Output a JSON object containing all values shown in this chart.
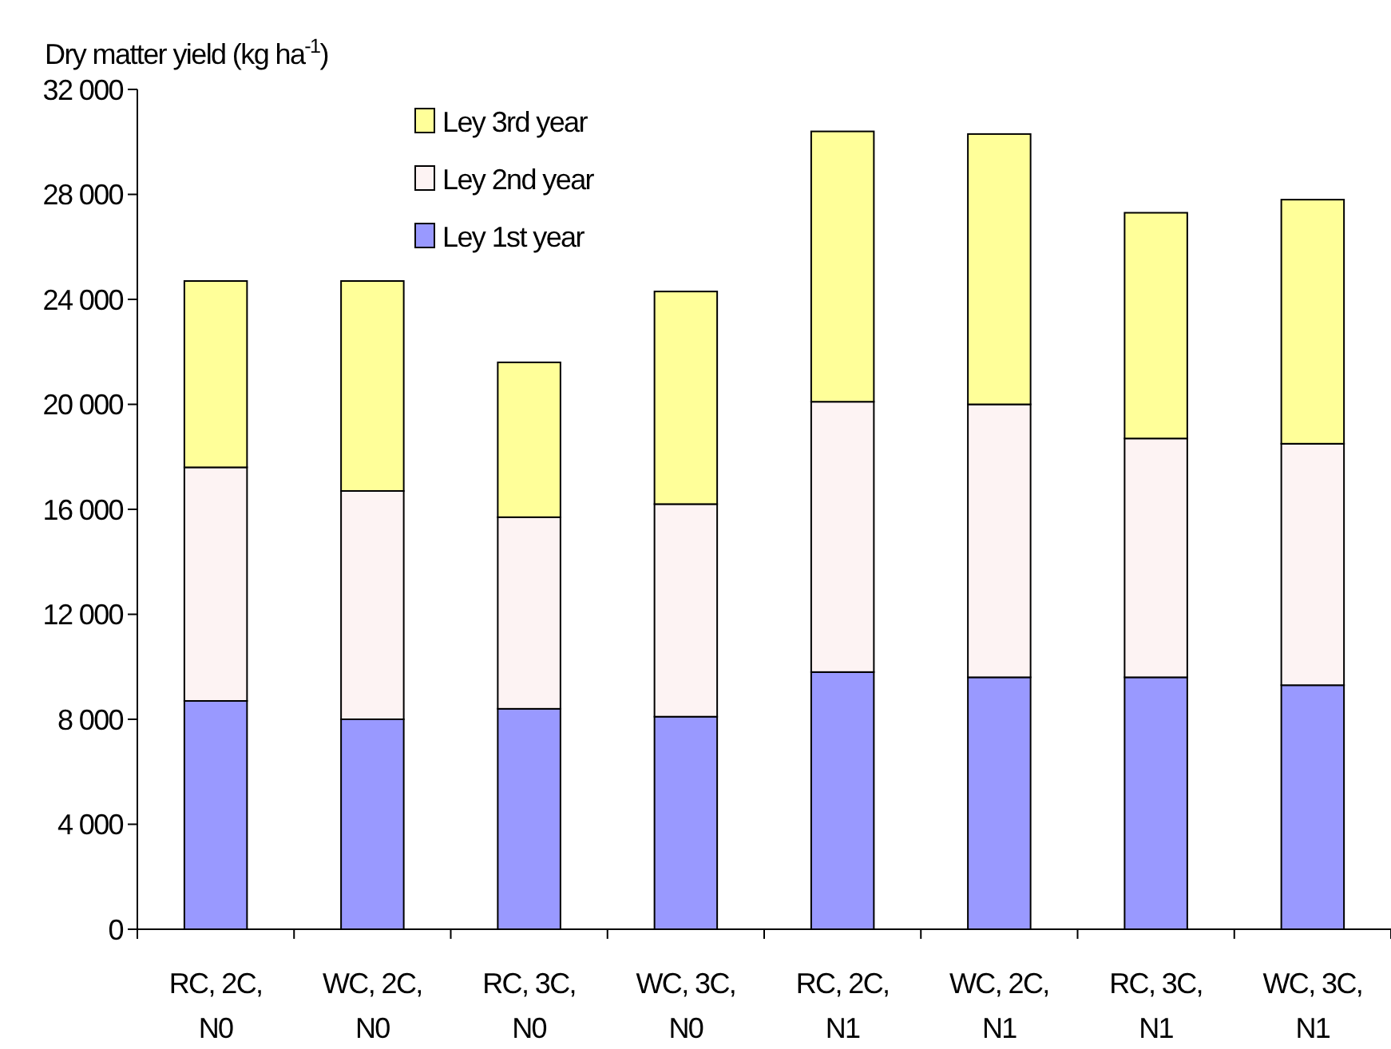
{
  "chart_data": {
    "type": "bar",
    "stacked": true,
    "ylabel": "Dry matter yield (kg ha$^{-1}$)",
    "categories": [
      "RC, 2C, N0",
      "WC, 2C, N0",
      "RC, 3C, N0",
      "WC, 3C, N0",
      "RC, 2C, N1",
      "WC, 2C, N1",
      "RC, 3C, N1",
      "WC, 3C, N1"
    ],
    "series": [
      {
        "name": "Ley 1st year",
        "color": "#9999ff",
        "values": [
          8700,
          8000,
          8400,
          8100,
          9800,
          9600,
          9600,
          9300
        ]
      },
      {
        "name": "Ley 2nd year",
        "color": "#fdf3f3",
        "values": [
          8900,
          8700,
          7300,
          8100,
          10300,
          10400,
          9100,
          9200
        ]
      },
      {
        "name": "Ley 3rd year",
        "color": "#ffff99",
        "values": [
          7100,
          8000,
          5900,
          8100,
          10300,
          10300,
          8600,
          9300
        ]
      }
    ],
    "ylim": [
      0,
      32000
    ],
    "yticks": [
      0,
      {
        "value": 4000,
        "label": "4 000"
      },
      {
        "value": 8000,
        "label": "8 000"
      },
      {
        "value": 12000,
        "label": "12 000"
      },
      {
        "value": 16000,
        "label": "16 000"
      },
      {
        "value": 20000,
        "label": "20 000"
      },
      {
        "value": 24000,
        "label": "24 000"
      },
      {
        "value": 28000,
        "label": "28 000"
      },
      {
        "value": 32000,
        "label": "32 000"
      }
    ],
    "legend": "top left",
    "grid": false
  }
}
